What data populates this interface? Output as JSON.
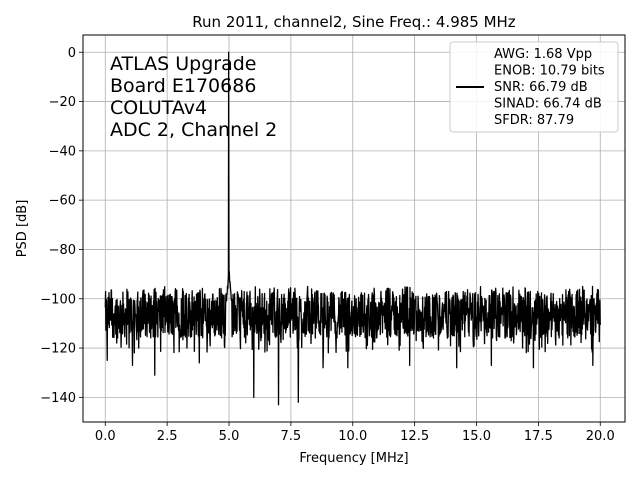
{
  "chart_data": {
    "type": "line",
    "title": "Run 2011, channel2, Sine Freq.: 4.985 MHz",
    "xlabel": "Frequency [MHz]",
    "ylabel": "PSD [dB]",
    "xlim": [
      -0.9,
      21.0
    ],
    "ylim": [
      -150.0,
      7.0
    ],
    "xticks": [
      0,
      2.5,
      5,
      7.5,
      10,
      12.5,
      15,
      17.5,
      20
    ],
    "xtick_labels": [
      "0.0",
      "2.5",
      "5.0",
      "7.5",
      "10.0",
      "12.5",
      "15.0",
      "17.5",
      "20.0"
    ],
    "yticks": [
      0,
      -20,
      -40,
      -60,
      -80,
      -100,
      -120,
      -140
    ],
    "ytick_labels": [
      "0",
      "−20",
      "−40",
      "−60",
      "−80",
      "−100",
      "−120",
      "−140"
    ],
    "grid": true,
    "legend_position": "top-right",
    "annotation": [
      "ATLAS Upgrade",
      " Board E170686",
      "COLUTAv4",
      "ADC 2, Channel 2"
    ],
    "legend_lines": [
      "AWG: 1.68 Vpp",
      "ENOB: 10.79 bits",
      "SNR: 66.79 dB",
      "SINAD: 66.74 dB",
      "SFDR: 87.79"
    ],
    "series": [
      {
        "color": "#000000",
        "noise_floor_db": -107,
        "noise_band_db": [
          -116,
          -97
        ],
        "fundamental": {
          "x": 4.985,
          "y": 0
        },
        "spur_near_fundamental": {
          "x": 5.0,
          "y": -89
        },
        "dips": [
          {
            "x": 0.08,
            "y": -125
          },
          {
            "x": 1.1,
            "y": -127
          },
          {
            "x": 2.0,
            "y": -131
          },
          {
            "x": 3.8,
            "y": -126
          },
          {
            "x": 6.0,
            "y": -140
          },
          {
            "x": 7.0,
            "y": -143
          },
          {
            "x": 7.8,
            "y": -142
          },
          {
            "x": 8.8,
            "y": -128
          },
          {
            "x": 9.8,
            "y": -128
          },
          {
            "x": 12.3,
            "y": -127
          },
          {
            "x": 14.2,
            "y": -128
          },
          {
            "x": 15.6,
            "y": -127
          },
          {
            "x": 17.3,
            "y": -128
          },
          {
            "x": 19.7,
            "y": -127
          }
        ]
      }
    ]
  }
}
